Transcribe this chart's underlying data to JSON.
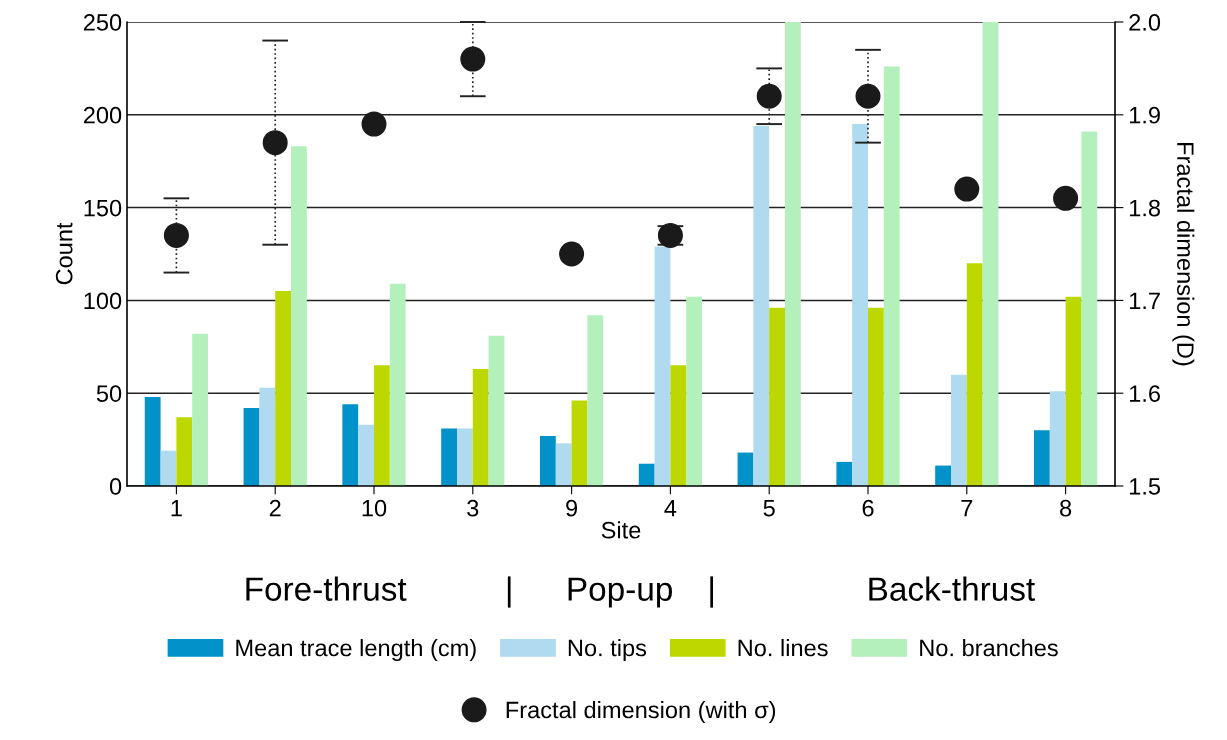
{
  "chart_data": {
    "type": "bar",
    "xlabel": "Site",
    "ylabel": "Count",
    "y2label": "Fractal dimension (D)",
    "categories": [
      "1",
      "2",
      "10",
      "3",
      "9",
      "4",
      "5",
      "6",
      "7",
      "8"
    ],
    "series": [
      {
        "name": "Mean trace length (cm)",
        "color": "#0092c8",
        "values": [
          48,
          42,
          44,
          31,
          27,
          12,
          18,
          13,
          11,
          30
        ]
      },
      {
        "name": "No. tips",
        "color": "#b0daf0",
        "values": [
          19,
          53,
          33,
          31,
          23,
          129,
          194,
          195,
          60,
          51
        ]
      },
      {
        "name": "No. lines",
        "color": "#bcd800",
        "values": [
          37,
          105,
          65,
          63,
          46,
          65,
          96,
          96,
          120,
          102
        ]
      },
      {
        "name": "No. branches",
        "color": "#b4f0bc",
        "values": [
          82,
          183,
          109,
          81,
          92,
          102,
          250,
          226,
          250,
          191
        ]
      },
      {
        "name": "Fractal dimension (with σ)",
        "type": "scatter",
        "axis": "y2",
        "color": "#1a1a1a",
        "marker": "circle",
        "line_style": "dotted",
        "values": [
          1.77,
          1.87,
          1.89,
          1.96,
          1.75,
          1.77,
          1.92,
          1.92,
          1.82,
          1.81
        ],
        "errors": [
          0.04,
          0.11,
          null,
          0.04,
          null,
          0.01,
          0.03,
          0.05,
          null,
          null
        ]
      }
    ],
    "ylim": [
      0,
      250
    ],
    "yticks": [
      0,
      50,
      100,
      150,
      200,
      250
    ],
    "y2lim": [
      1.5,
      2.0
    ],
    "y2ticks": [
      1.5,
      1.6,
      1.7,
      1.8,
      1.9,
      {
        "value": 2,
        "label": "2.0"
      }
    ],
    "grid": "y",
    "legend": "bottom",
    "annotations": [
      "Fore-thrust",
      "|",
      "Pop-up",
      "|",
      "Back-thrust"
    ]
  }
}
